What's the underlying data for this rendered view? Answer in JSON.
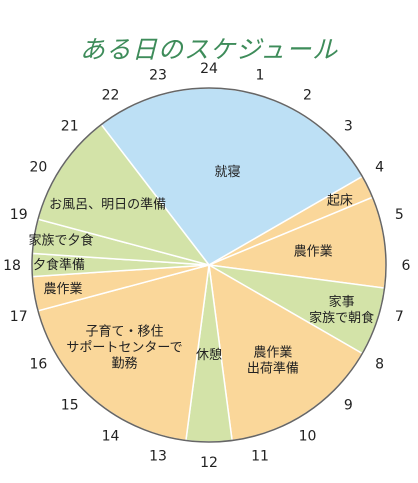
{
  "chart_data": {
    "type": "pie",
    "title": "ある日のスケジュール",
    "hours": [
      "24",
      "1",
      "2",
      "3",
      "4",
      "5",
      "6",
      "7",
      "8",
      "9",
      "10",
      "11",
      "12",
      "13",
      "14",
      "15",
      "16",
      "17",
      "18",
      "19",
      "20",
      "21",
      "22",
      "23"
    ],
    "segments": [
      {
        "lines": [
          "就寝"
        ],
        "start": 21.5,
        "end": 4,
        "color": "#bde0f5"
      },
      {
        "lines": [
          "起床"
        ],
        "start": 4,
        "end": 4.5,
        "color": "#fad79a"
      },
      {
        "lines": [
          "農作業"
        ],
        "start": 4.5,
        "end": 6.5,
        "color": "#fad79a"
      },
      {
        "lines": [
          "家事",
          "家族で朝食"
        ],
        "start": 6.5,
        "end": 8,
        "color": "#d3e3a8"
      },
      {
        "lines": [
          "農作業",
          "出荷準備"
        ],
        "start": 8,
        "end": 11.5,
        "color": "#fad79a"
      },
      {
        "lines": [
          "休憩"
        ],
        "start": 11.5,
        "end": 12.5,
        "color": "#d3e3a8"
      },
      {
        "lines": [
          "子育て・移住",
          "サポートセンターで",
          "勤務"
        ],
        "start": 12.5,
        "end": 17,
        "color": "#fad79a"
      },
      {
        "lines": [
          "農作業"
        ],
        "start": 17,
        "end": 17.75,
        "color": "#fad79a"
      },
      {
        "lines": [
          "夕食準備"
        ],
        "start": 17.75,
        "end": 18.25,
        "color": "#d3e3a8"
      },
      {
        "lines": [
          "家族で夕食"
        ],
        "start": 18.25,
        "end": 19,
        "color": "#d3e3a8"
      },
      {
        "lines": [
          "お風呂、明日の準備"
        ],
        "start": 19,
        "end": 21.5,
        "color": "#d3e3a8"
      }
    ]
  }
}
